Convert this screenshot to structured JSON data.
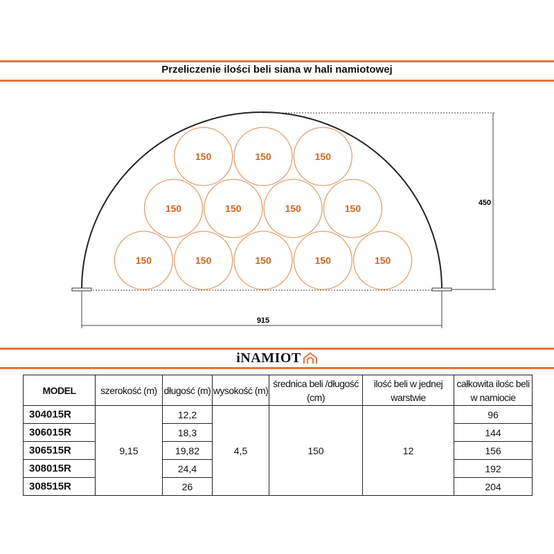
{
  "title": "Przeliczenie ilości beli siana w hali namiotowej",
  "colors": {
    "accent": "#e8743a",
    "bale_stroke": "#e0a070",
    "bale_label": "#d0651e"
  },
  "diagram": {
    "width_label": "915",
    "height_label": "450",
    "bale_label": "150",
    "bales_per_row": [
      5,
      4,
      3
    ]
  },
  "logo": {
    "text": "iNAMIOT",
    "icon": "tent-icon"
  },
  "table": {
    "headers": [
      "MODEL",
      "szerokość (m)",
      "długość (m)",
      "wysokość (m)",
      "średnica beli /długość (cm)",
      "ilość beli w jednej warstwie",
      "całkowita ilośc beli w namiocie"
    ],
    "shared": {
      "width": "9,15",
      "height": "4,5",
      "diameter": "150",
      "per_layer": "12"
    },
    "rows": [
      {
        "model": "304015R",
        "length": "12,2",
        "total": "96"
      },
      {
        "model": "306015R",
        "length": "18,3",
        "total": "144"
      },
      {
        "model": "306515R",
        "length": "19,82",
        "total": "156"
      },
      {
        "model": "308015R",
        "length": "24,4",
        "total": "192"
      },
      {
        "model": "308515R",
        "length": "26",
        "total": "204"
      }
    ]
  }
}
